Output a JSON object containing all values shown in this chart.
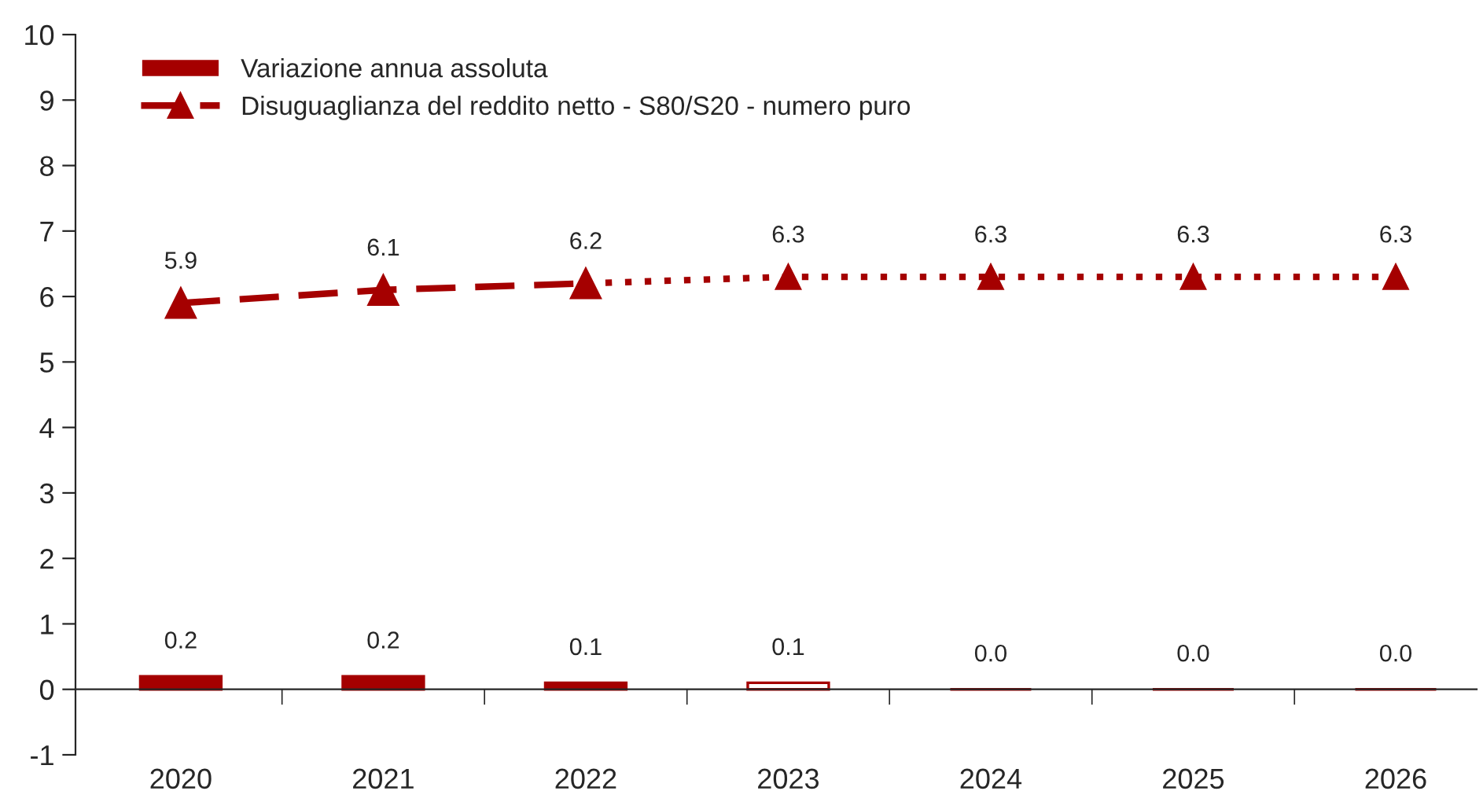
{
  "chart_data": {
    "type": "bar",
    "categories": [
      "2020",
      "2021",
      "2022",
      "2023",
      "2024",
      "2025",
      "2026"
    ],
    "series": [
      {
        "name": "Variazione annua assoluta",
        "color": "#a50000",
        "colors": [
          "#a50000",
          "#a50000",
          "#a50000",
          "#ffffff",
          "#a50000",
          "#a50000",
          "#a50000"
        ],
        "values": [
          0.2,
          0.2,
          0.1,
          0.1,
          0.0,
          0.0,
          0.0
        ],
        "value_labels": [
          "0.2",
          "0.2",
          "0.1",
          "0.1",
          "0.0",
          "0.0",
          "0.0"
        ]
      },
      {
        "name": "Disuguaglianza del reddito netto - S80/S20 - numero puro",
        "type": "line",
        "color": "#a50000",
        "line_style": "dashed",
        "marker": "triangle",
        "values": [
          5.9,
          6.1,
          6.2,
          null,
          null,
          null,
          null
        ],
        "value_labels": [
          "5.9",
          "6.1",
          "6.2",
          null,
          null,
          null,
          null
        ]
      },
      {
        "type": "line",
        "color": "#a50000",
        "line_style": "dotted",
        "marker": "triangle",
        "values": [
          null,
          null,
          6.2,
          6.3,
          6.3,
          6.3,
          6.3
        ],
        "value_labels": [
          null,
          null,
          null,
          "6.3",
          "6.3",
          "6.3",
          "6.3"
        ]
      }
    ],
    "ylim": [
      -1,
      10
    ],
    "yticks": [
      {
        "value": -1,
        "label": "-1"
      },
      0,
      1,
      2,
      3,
      4,
      5,
      6,
      7,
      8,
      9,
      10
    ],
    "legend": "top left"
  }
}
